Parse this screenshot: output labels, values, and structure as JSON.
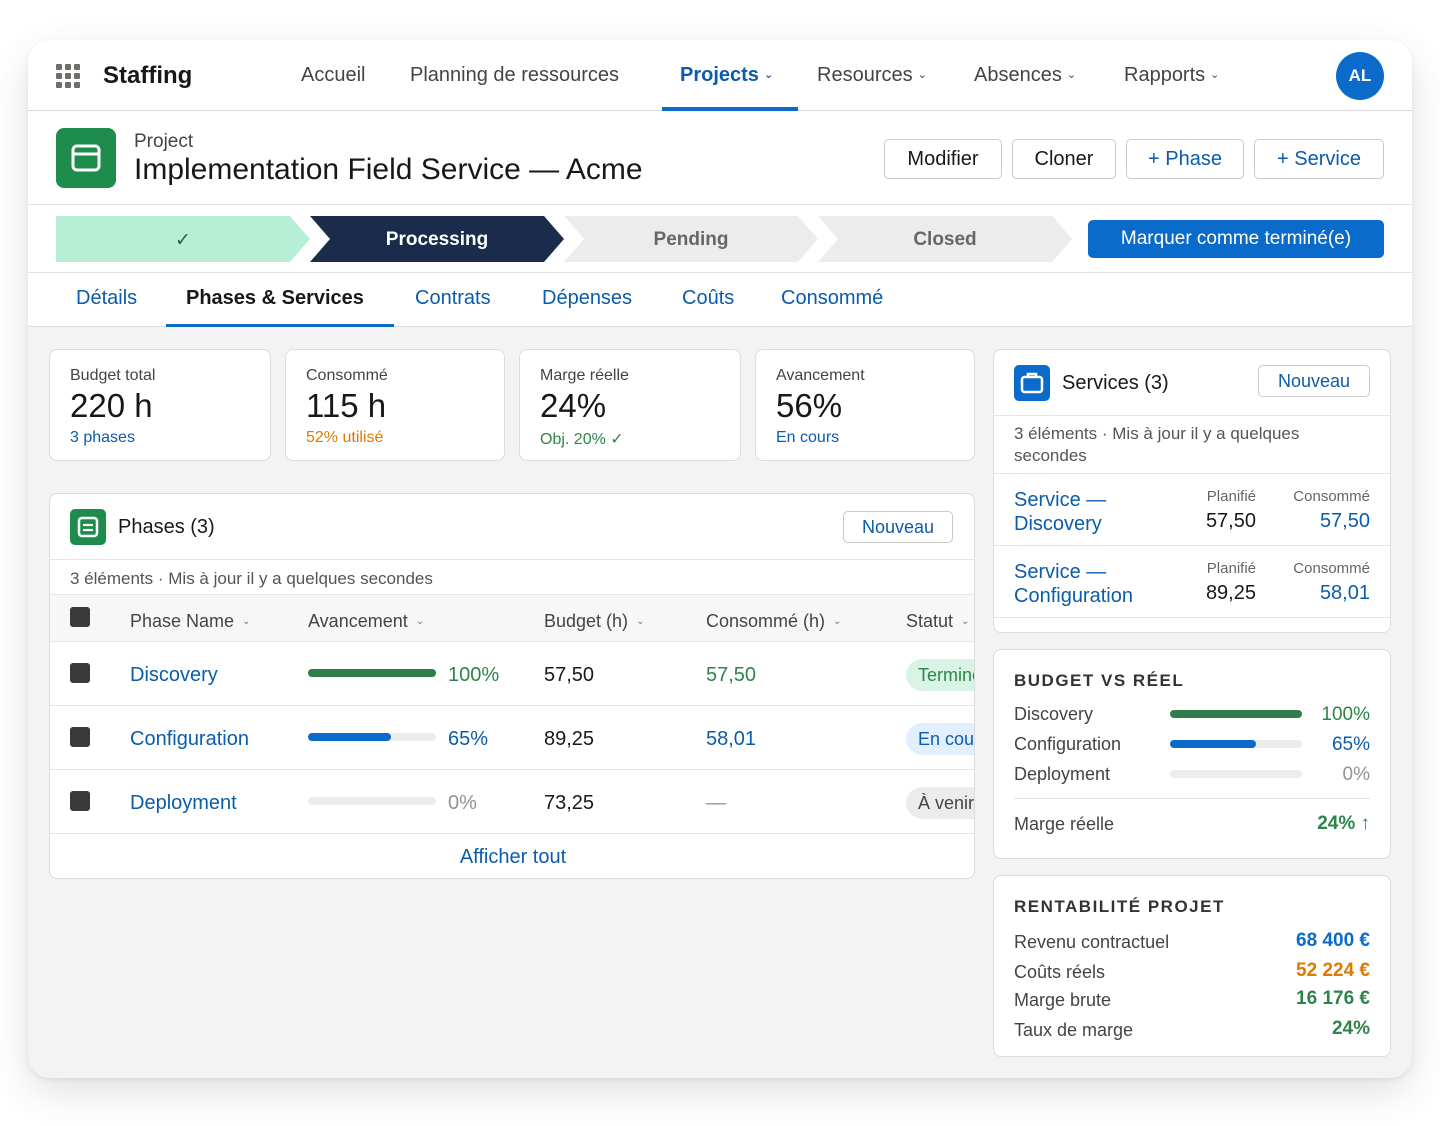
{
  "app": {
    "name": "Staffing",
    "avatar_initials": "AL"
  },
  "nav": {
    "items": [
      {
        "label": "Accueil",
        "has_menu": false
      },
      {
        "label": "Planning de ressources",
        "has_menu": false
      },
      {
        "label": "Projects",
        "has_menu": true
      },
      {
        "label": "Resources",
        "has_menu": true
      },
      {
        "label": "Absences",
        "has_menu": true
      },
      {
        "label": "Rapports",
        "has_menu": true
      }
    ],
    "active": "Projects"
  },
  "header": {
    "object_label": "Project",
    "title": "Implementation Field Service — Acme",
    "actions": {
      "edit": "Modifier",
      "clone": "Cloner",
      "add_phase": "+ Phase",
      "add_service": "+ Service"
    }
  },
  "path": {
    "stages": [
      "✓",
      "Processing",
      "Pending",
      "Closed"
    ],
    "current": "Processing",
    "mark_done": "Marquer comme terminé(e)"
  },
  "tabs": {
    "items": [
      "Détails",
      "Phases & Services",
      "Contrats",
      "Dépenses",
      "Coûts",
      "Consommé"
    ],
    "active": "Phases & Services"
  },
  "kpis": [
    {
      "label": "Budget total",
      "value": "220 h",
      "sub": "3 phases",
      "sub_color": "#0b5cab"
    },
    {
      "label": "Consommé",
      "value": "115 h",
      "sub": "52% utilisé",
      "sub_color": "#dd7a01"
    },
    {
      "label": "Marge réelle",
      "value": "24%",
      "sub": "Obj. 20% ✓",
      "sub_color": "#2e844a"
    },
    {
      "label": "Avancement",
      "value": "56%",
      "sub": "En cours",
      "sub_color": "#0b5cab"
    }
  ],
  "phases": {
    "title": "Phases (3)",
    "new_button": "Nouveau",
    "meta": "3 éléments · Mis à jour il y a quelques secondes",
    "columns": [
      "Phase Name",
      "Avancement",
      "Budget (h)",
      "Consommé (h)",
      "Statut"
    ],
    "rows": [
      {
        "name": "Discovery",
        "progress": 100,
        "progress_label": "100%",
        "budget": "57,50",
        "consumed": "57,50",
        "status": "Terminé"
      },
      {
        "name": "Configuration",
        "progress": 65,
        "progress_label": "65%",
        "budget": "89,25",
        "consumed": "58,01",
        "status": "En cours"
      },
      {
        "name": "Deployment",
        "progress": 0,
        "progress_label": "0%",
        "budget": "73,25",
        "consumed": "—",
        "status": "À venir"
      }
    ],
    "show_all": "Afficher tout"
  },
  "services": {
    "title": "Services (3)",
    "new_button": "Nouveau",
    "meta": "3 éléments · Mis à jour il y a quelques secondes",
    "col_planned": "Planifié",
    "col_consumed": "Consommé",
    "rows": [
      {
        "name_line1": "Service —",
        "name_line2": "Discovery",
        "planned": "57,50",
        "consumed": "57,50"
      },
      {
        "name_line1": "Service —",
        "name_line2": "Configuration",
        "planned": "89,25",
        "consumed": "58,01"
      }
    ]
  },
  "budget_vs_real": {
    "title": "BUDGET VS RÉEL",
    "rows": [
      {
        "label": "Discovery",
        "progress": 100,
        "value": "100%"
      },
      {
        "label": "Configuration",
        "progress": 65,
        "value": "65%"
      },
      {
        "label": "Deployment",
        "progress": 0,
        "value": "0%"
      }
    ],
    "margin_label": "Marge réelle",
    "margin_value": "24% ↑"
  },
  "profitability": {
    "title": "RENTABILITÉ PROJET",
    "rows": [
      {
        "label": "Revenu contractuel",
        "value": "68 400 €"
      },
      {
        "label": "Coûts réels",
        "value": "52 224 €"
      },
      {
        "label": "Marge brute",
        "value": "16 176 €"
      },
      {
        "label": "Taux de marge",
        "value": "24%"
      }
    ]
  },
  "colors": {
    "brand_blue": "#0b6bcb",
    "link_blue": "#0b5cab",
    "success_green": "#2e844a",
    "warning_orange": "#dd7a01",
    "path_done": "#b6efd5",
    "path_current": "#1b2b4b",
    "path_pending": "#ececec"
  }
}
